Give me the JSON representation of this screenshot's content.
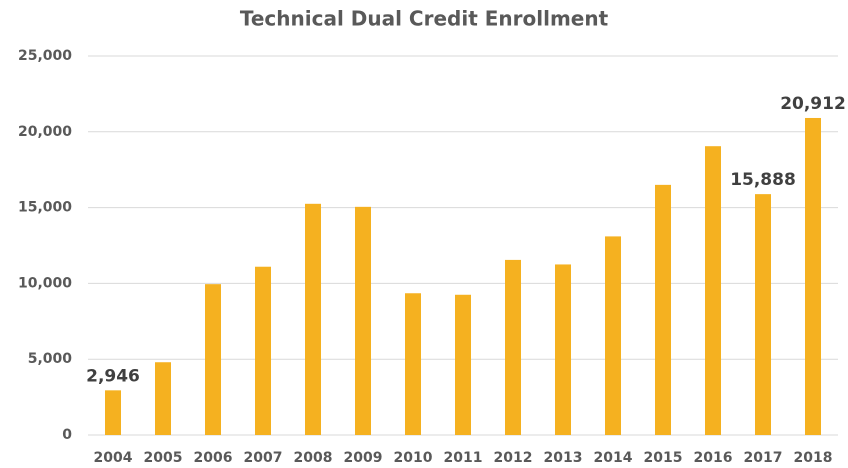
{
  "chart_data": {
    "type": "bar",
    "title": "Technical Dual Credit Enrollment",
    "categories": [
      "2004",
      "2005",
      "2006",
      "2007",
      "2008",
      "2009",
      "2010",
      "2011",
      "2012",
      "2013",
      "2014",
      "2015",
      "2016",
      "2017",
      "2018"
    ],
    "values": [
      2946,
      4800,
      9950,
      11100,
      15250,
      15050,
      9350,
      9250,
      11550,
      11250,
      13100,
      16500,
      19050,
      15888,
      20912
    ],
    "value_labels": [
      "2,946",
      null,
      null,
      null,
      null,
      null,
      null,
      null,
      null,
      null,
      null,
      null,
      null,
      "15,888",
      "20,912"
    ],
    "color": "#f5b120",
    "ylim": [
      0,
      25000
    ],
    "yticks": [
      0,
      {
        "value": 5000,
        "label": "5,000"
      },
      {
        "value": 10000,
        "label": "10,000"
      },
      {
        "value": 15000,
        "label": "15,000"
      },
      {
        "value": 20000,
        "label": "20,000"
      },
      {
        "value": 25000,
        "label": "25,000"
      }
    ],
    "grid": true
  }
}
